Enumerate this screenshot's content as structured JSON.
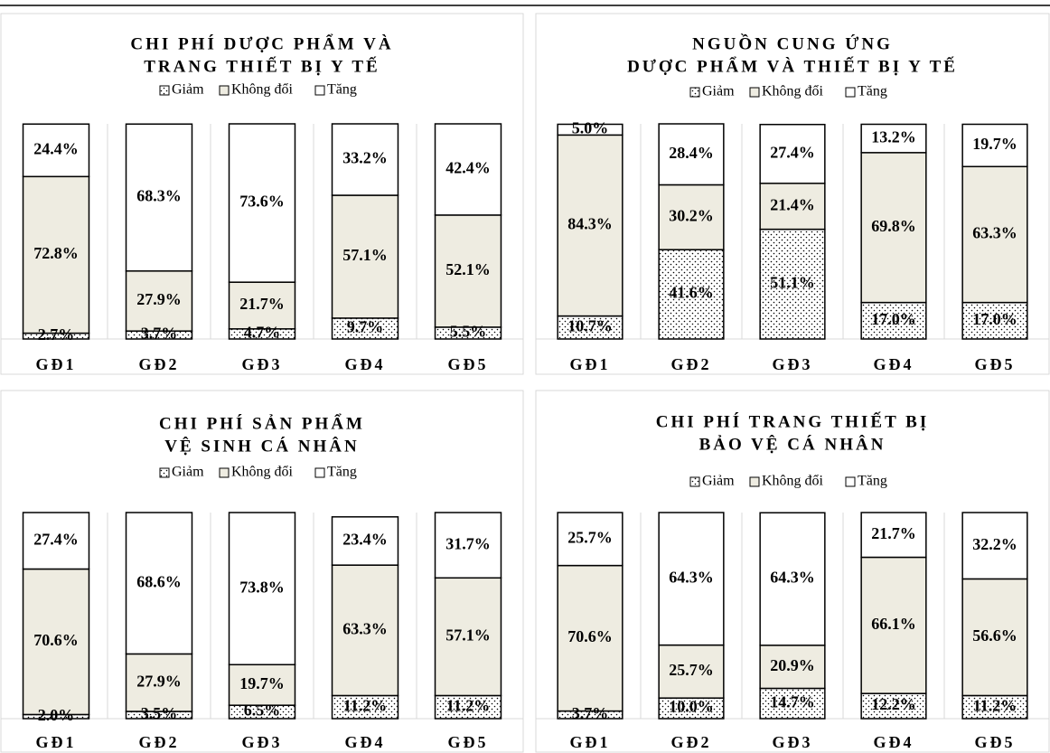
{
  "chart_data": [
    {
      "type": "stacked_bar",
      "title": [
        "CHI PHÍ DƯỢC PHẨM VÀ",
        "TRANG THIẾT BỊ Y TẾ"
      ],
      "categories": [
        "GĐ1",
        "GĐ2",
        "GĐ3",
        "GĐ4",
        "GĐ5"
      ],
      "series": [
        {
          "name": "Giảm",
          "color": "#ffffff",
          "pattern": "dots",
          "values": [
            2.7,
            3.7,
            4.7,
            9.7,
            5.5
          ],
          "value_labels": [
            "2.7%",
            "3.7%",
            "4.7%",
            "9.7%",
            "5.5%"
          ]
        },
        {
          "name": "Không đổi",
          "color": "#eeece1",
          "values": [
            72.8,
            27.9,
            21.7,
            57.1,
            52.1
          ],
          "value_labels": [
            "72.8%",
            "27.9%",
            "21.7%",
            "57.1%",
            "52.1%"
          ]
        },
        {
          "name": "Tăng",
          "color": "#ffffff",
          "values": [
            24.4,
            68.3,
            73.6,
            33.2,
            42.4
          ],
          "value_labels": [
            "24.4%",
            "68.3%",
            "73.6%",
            "33.2%",
            "42.4%"
          ]
        }
      ]
    },
    {
      "type": "stacked_bar",
      "title": [
        "NGUỒN CUNG ỨNG",
        "DƯỢC PHẨM VÀ THIẾT BỊ Y TẾ"
      ],
      "categories": [
        "GĐ1",
        "GĐ2",
        "GĐ3",
        "GĐ4",
        "GĐ5"
      ],
      "series": [
        {
          "name": "Giảm",
          "color": "#ffffff",
          "pattern": "dots",
          "values": [
            10.7,
            41.6,
            51.1,
            17.0,
            17.0
          ],
          "value_labels": [
            "10.7%",
            "41.6%",
            "51.1%",
            "17.0%",
            "17.0%"
          ]
        },
        {
          "name": "Không đổi",
          "color": "#eeece1",
          "values": [
            84.3,
            30.2,
            21.4,
            69.8,
            63.3
          ],
          "value_labels": [
            "84.3%",
            "30.2%",
            "21.4%",
            "69.8%",
            "63.3%"
          ]
        },
        {
          "name": "Tăng",
          "color": "#ffffff",
          "values": [
            5.0,
            28.4,
            27.4,
            13.2,
            19.7
          ],
          "value_labels": [
            "5.0%",
            "28.4%",
            "27.4%",
            "13.2%",
            "19.7%"
          ]
        }
      ]
    },
    {
      "type": "stacked_bar",
      "title": [
        "CHI PHÍ SẢN PHẨM",
        "VỆ SINH CÁ NHÂN"
      ],
      "categories": [
        "GĐ1",
        "GĐ2",
        "GĐ3",
        "GĐ4",
        "GĐ5"
      ],
      "series": [
        {
          "name": "Giảm",
          "color": "#ffffff",
          "pattern": "dots",
          "values": [
            2.0,
            3.5,
            6.5,
            11.2,
            11.2
          ],
          "value_labels": [
            "2.0%",
            "3.5%",
            "6.5%",
            "11.2%",
            "11.2%"
          ]
        },
        {
          "name": "Không đổi",
          "color": "#eeece1",
          "values": [
            70.6,
            27.9,
            19.7,
            63.3,
            57.1
          ],
          "value_labels": [
            "70.6%",
            "27.9%",
            "19.7%",
            "63.3%",
            "57.1%"
          ]
        },
        {
          "name": "Tăng",
          "color": "#ffffff",
          "values": [
            27.4,
            68.6,
            73.8,
            23.4,
            31.7
          ],
          "value_labels": [
            "27.4%",
            "68.6%",
            "73.8%",
            "23.4%",
            "31.7%"
          ]
        }
      ]
    },
    {
      "type": "stacked_bar",
      "title": [
        "CHI PHÍ TRANG THIẾT BỊ",
        "BẢO VỆ CÁ NHÂN"
      ],
      "categories": [
        "GĐ1",
        "GĐ2",
        "GĐ3",
        "GĐ4",
        "GĐ5"
      ],
      "series": [
        {
          "name": "Giảm",
          "color": "#ffffff",
          "pattern": "dots",
          "values": [
            3.7,
            10.0,
            14.7,
            12.2,
            11.2
          ],
          "value_labels": [
            "3.7%",
            "10.0%",
            "14.7%",
            "12.2%",
            "11.2%"
          ]
        },
        {
          "name": "Không đổi",
          "color": "#eeece1",
          "values": [
            70.6,
            25.7,
            20.9,
            66.1,
            56.6
          ],
          "value_labels": [
            "70.6%",
            "25.7%",
            "20.9%",
            "66.1%",
            "56.6%"
          ]
        },
        {
          "name": "Tăng",
          "color": "#ffffff",
          "values": [
            25.7,
            64.3,
            64.3,
            21.7,
            32.2
          ],
          "value_labels": [
            "25.7%",
            "64.3%",
            "64.3%",
            "21.7%",
            "32.2%"
          ]
        }
      ]
    }
  ]
}
